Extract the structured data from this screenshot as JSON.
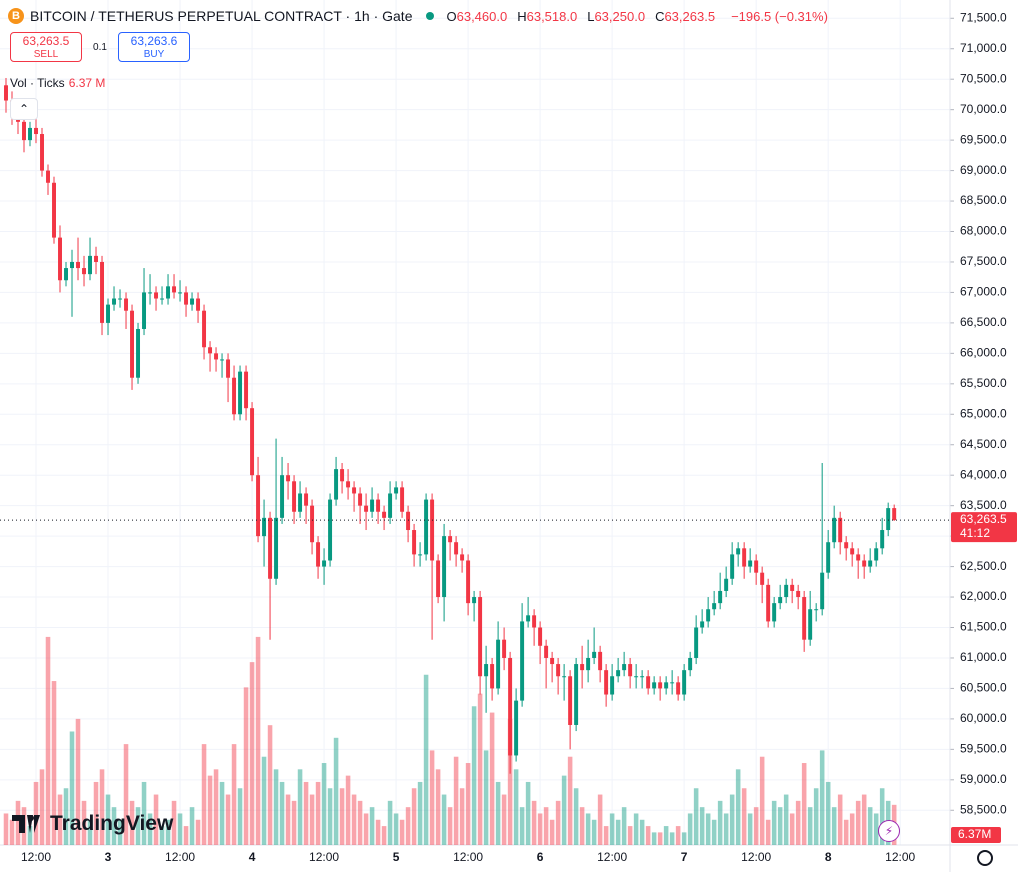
{
  "header": {
    "title": "BITCOIN / TETHERUS PERPETUAL CONTRACT · 1h · Gate",
    "ohlc": [
      {
        "label": "O",
        "value": "63,460.0"
      },
      {
        "label": "H",
        "value": "63,518.0"
      },
      {
        "label": "L",
        "value": "63,250.0"
      },
      {
        "label": "C",
        "value": "63,263.5"
      }
    ],
    "change": "−196.5 (−0.31%)"
  },
  "trade": {
    "sell_price": "63,263.5",
    "sell": "SELL",
    "quantity": "0.1",
    "buy_price": "63,263.6",
    "buy": "BUY"
  },
  "volume_legend": {
    "label": "Vol · Ticks",
    "value": "6.37 M"
  },
  "branding": "TradingView",
  "chart_data": {
    "type": "candlestick",
    "up_color": "#089981",
    "down_color": "#f23645",
    "grid": true,
    "open": [
      70400,
      70150,
      69900,
      69800,
      69500,
      69700,
      69600,
      69000,
      68800,
      67900,
      67200,
      67400,
      67500,
      67400,
      67300,
      67600,
      67500,
      66500,
      66800,
      66900,
      66900,
      66700,
      65600,
      66400,
      67000,
      67000,
      66900,
      66900,
      67100,
      67000,
      67000,
      66800,
      66900,
      66700,
      66100,
      66000,
      65900,
      65900,
      65600,
      65000,
      65700,
      65100,
      64000,
      63000,
      63300,
      62300,
      63300,
      64000,
      63900,
      63400,
      63700,
      63500,
      62900,
      62500,
      62600,
      63600,
      64100,
      63900,
      63800,
      63700,
      63500,
      63400,
      63600,
      63400,
      63300,
      63700,
      63800,
      63400,
      63100,
      62700,
      62700,
      63600,
      62600,
      62000,
      63000,
      62900,
      62700,
      62600,
      61900,
      62000,
      60700,
      60900,
      60500,
      61300,
      61000,
      59400,
      60300,
      61600,
      61700,
      61500,
      61200,
      61000,
      60900,
      60700,
      60700,
      59900,
      60900,
      60800,
      61000,
      61100,
      60800,
      60400,
      60700,
      60800,
      60900,
      60700,
      60700,
      60700,
      60500,
      60600,
      60500,
      60600,
      60600,
      60400,
      60800,
      61000,
      61500,
      61600,
      61800,
      61900,
      62100,
      62300,
      62700,
      62800,
      62500,
      62600,
      62400,
      62200,
      61600,
      61900,
      62000,
      62200,
      62100,
      62000,
      61300,
      61800,
      61800,
      62400,
      62900,
      63300,
      62900,
      62800,
      62700,
      62600,
      62500,
      62600,
      62800,
      63100,
      63460
    ],
    "high": [
      70520,
      70300,
      70000,
      69900,
      69800,
      69850,
      69700,
      69100,
      68900,
      68100,
      67500,
      67700,
      67900,
      67600,
      67900,
      67750,
      67600,
      66900,
      67100,
      67050,
      67000,
      66800,
      66500,
      67400,
      67300,
      67100,
      67100,
      67300,
      67300,
      67200,
      67100,
      67000,
      67000,
      66800,
      66200,
      66100,
      66000,
      66000,
      65800,
      65800,
      65800,
      65200,
      64300,
      63600,
      63400,
      64600,
      64300,
      64200,
      64000,
      63900,
      63800,
      63600,
      63000,
      62800,
      63700,
      64300,
      64200,
      64100,
      63900,
      63800,
      63700,
      63800,
      63700,
      63500,
      63900,
      63900,
      63900,
      63500,
      63200,
      62900,
      63700,
      63700,
      62700,
      63200,
      63100,
      63000,
      62800,
      62700,
      62100,
      62100,
      61200,
      61000,
      61600,
      61500,
      61100,
      60500,
      61900,
      62000,
      61800,
      61600,
      61300,
      61100,
      61000,
      60900,
      60800,
      61000,
      61200,
      61300,
      61500,
      61200,
      60900,
      60900,
      61000,
      61100,
      61000,
      60900,
      60800,
      60800,
      60700,
      60700,
      60700,
      60800,
      60700,
      60900,
      61100,
      61700,
      61800,
      62000,
      62100,
      62400,
      62500,
      62900,
      62900,
      62900,
      62800,
      62700,
      62500,
      62300,
      62000,
      62200,
      62300,
      62300,
      62200,
      62100,
      62100,
      61900,
      64200,
      63100,
      63500,
      63400,
      63000,
      62900,
      62800,
      62700,
      62800,
      62900,
      63300,
      63550,
      63518
    ],
    "low": [
      69950,
      69750,
      69600,
      69300,
      69400,
      69450,
      68900,
      68600,
      67800,
      67000,
      67100,
      66600,
      67200,
      67100,
      67200,
      67300,
      66300,
      66300,
      66700,
      66750,
      66400,
      65400,
      65500,
      66300,
      66800,
      66700,
      66800,
      66800,
      66900,
      66850,
      66600,
      66700,
      66500,
      65900,
      65700,
      65700,
      65600,
      65200,
      64900,
      64900,
      64900,
      63900,
      62900,
      62500,
      61300,
      62200,
      63200,
      63600,
      63200,
      63300,
      63200,
      62700,
      62300,
      62200,
      62500,
      63500,
      63700,
      63600,
      63400,
      63200,
      63100,
      63300,
      63200,
      63100,
      63200,
      63600,
      63300,
      62900,
      62500,
      62500,
      62600,
      61300,
      61900,
      61600,
      62600,
      62500,
      62400,
      61700,
      61600,
      60400,
      60100,
      60300,
      60400,
      60800,
      59100,
      59300,
      60200,
      61500,
      61200,
      60900,
      60500,
      60600,
      60400,
      60300,
      59500,
      59800,
      60500,
      60600,
      60900,
      60600,
      60200,
      60300,
      60600,
      60700,
      60500,
      60500,
      60500,
      60400,
      60400,
      60300,
      60400,
      60400,
      60300,
      60300,
      60700,
      60900,
      61400,
      61500,
      61700,
      61800,
      62000,
      62200,
      62500,
      62300,
      62400,
      62200,
      61900,
      61500,
      61500,
      61800,
      61900,
      61900,
      61800,
      61100,
      61200,
      61600,
      61700,
      62300,
      62800,
      62700,
      62600,
      62500,
      62300,
      62300,
      62400,
      62500,
      62700,
      63000,
      63250
    ],
    "close": [
      70150,
      69900,
      69800,
      69500,
      69700,
      69600,
      69000,
      68800,
      67900,
      67200,
      67400,
      67500,
      67400,
      67300,
      67600,
      67500,
      66500,
      66800,
      66900,
      66900,
      66700,
      65600,
      66400,
      67000,
      67000,
      66900,
      66900,
      67100,
      67000,
      67000,
      66800,
      66900,
      66700,
      66100,
      66000,
      65900,
      65900,
      65600,
      65000,
      65700,
      65100,
      64000,
      63000,
      63300,
      62300,
      63300,
      64000,
      63900,
      63400,
      63700,
      63500,
      62900,
      62500,
      62600,
      63600,
      64100,
      63900,
      63800,
      63700,
      63500,
      63400,
      63600,
      63400,
      63300,
      63700,
      63800,
      63400,
      63100,
      62700,
      62700,
      63600,
      62600,
      62000,
      63000,
      62900,
      62700,
      62600,
      61900,
      62000,
      60700,
      60900,
      60500,
      61300,
      61000,
      59400,
      60300,
      61600,
      61700,
      61500,
      61200,
      61000,
      60900,
      60700,
      60700,
      59900,
      60900,
      60800,
      61000,
      61100,
      60800,
      60400,
      60700,
      60800,
      60900,
      60700,
      60700,
      60700,
      60500,
      60600,
      60500,
      60600,
      60600,
      60400,
      60800,
      61000,
      61500,
      61600,
      61800,
      61900,
      62100,
      62300,
      62700,
      62800,
      62500,
      62600,
      62400,
      62200,
      61600,
      61900,
      62000,
      62200,
      62100,
      62000,
      61300,
      61800,
      61800,
      62400,
      62900,
      63300,
      62900,
      62800,
      62700,
      62600,
      62500,
      62600,
      62800,
      63100,
      63460,
      63263.5
    ],
    "volume": [
      5,
      4,
      7,
      6,
      3,
      10,
      12,
      33,
      26,
      8,
      9,
      18,
      20,
      7,
      4,
      10,
      12,
      8,
      6,
      4,
      16,
      7,
      6,
      10,
      5,
      8,
      3,
      4,
      7,
      5,
      3,
      6,
      4,
      16,
      11,
      12,
      10,
      8,
      16,
      9,
      25,
      29,
      33,
      14,
      19,
      12,
      10,
      8,
      7,
      12,
      10,
      8,
      10,
      13,
      9,
      17,
      9,
      11,
      8,
      7,
      5,
      6,
      4,
      3,
      7,
      5,
      4,
      6,
      9,
      10,
      27,
      15,
      12,
      8,
      6,
      14,
      9,
      13,
      22,
      24,
      15,
      21,
      10,
      8,
      20,
      12,
      6,
      10,
      7,
      5,
      6,
      4,
      7,
      11,
      14,
      9,
      6,
      5,
      4,
      8,
      3,
      5,
      4,
      6,
      3,
      5,
      4,
      3,
      2,
      2,
      3,
      2,
      3,
      2,
      5,
      9,
      6,
      5,
      4,
      7,
      5,
      8,
      12,
      9,
      5,
      6,
      14,
      4,
      7,
      6,
      8,
      5,
      7,
      13,
      6,
      9,
      15,
      10,
      6,
      8,
      4,
      5,
      7,
      8,
      6,
      5,
      9,
      7,
      6.37
    ],
    "ylim": [
      57930,
      71800
    ],
    "yticks": [
      {
        "value": 58500,
        "label": "58,500.0"
      },
      {
        "value": 59000,
        "label": "59,000.0"
      },
      {
        "value": 59500,
        "label": "59,500.0"
      },
      {
        "value": 60000,
        "label": "60,000.0"
      },
      {
        "value": 60500,
        "label": "60,500.0"
      },
      {
        "value": 61000,
        "label": "61,000.0"
      },
      {
        "value": 61500,
        "label": "61,500.0"
      },
      {
        "value": 62000,
        "label": "62,000.0"
      },
      {
        "value": 62500,
        "label": "62,500.0"
      },
      {
        "value": 63000,
        "label": "63,000.0"
      },
      {
        "value": 63500,
        "label": "63,500.0"
      },
      {
        "value": 64000,
        "label": "64,000.0"
      },
      {
        "value": 64500,
        "label": "64,500.0"
      },
      {
        "value": 65000,
        "label": "65,000.0"
      },
      {
        "value": 65500,
        "label": "65,500.0"
      },
      {
        "value": 66000,
        "label": "66,000.0"
      },
      {
        "value": 66500,
        "label": "66,500.0"
      },
      {
        "value": 67000,
        "label": "67,000.0"
      },
      {
        "value": 67500,
        "label": "67,500.0"
      },
      {
        "value": 68000,
        "label": "68,000.0"
      },
      {
        "value": 68500,
        "label": "68,500.0"
      },
      {
        "value": 69000,
        "label": "69,000.0"
      },
      {
        "value": 69500,
        "label": "69,500.0"
      },
      {
        "value": 70000,
        "label": "70,000.0"
      },
      {
        "value": 70500,
        "label": "70,500.0"
      },
      {
        "value": 71000,
        "label": "71,000.0"
      },
      {
        "value": 71500,
        "label": "71,500.0"
      }
    ],
    "xlim": [
      -1,
      157.3
    ],
    "xticks": [
      {
        "value": 5,
        "label": "12:00"
      },
      {
        "value": 17,
        "label": "3"
      },
      {
        "value": 29,
        "label": "12:00"
      },
      {
        "value": 41,
        "label": "4"
      },
      {
        "value": 53,
        "label": "12:00"
      },
      {
        "value": 65,
        "label": "5"
      },
      {
        "value": 77,
        "label": "12:00"
      },
      {
        "value": 89,
        "label": "6"
      },
      {
        "value": 101,
        "label": "12:00"
      },
      {
        "value": 113,
        "label": "7"
      },
      {
        "value": 125,
        "label": "12:00"
      },
      {
        "value": 137,
        "label": "8"
      },
      {
        "value": 149,
        "label": "12:00"
      }
    ],
    "volume_lim": [
      0,
      134
    ],
    "last_price_label": "63,263.5",
    "countdown": "41:12",
    "volume_label": "6.37M"
  }
}
